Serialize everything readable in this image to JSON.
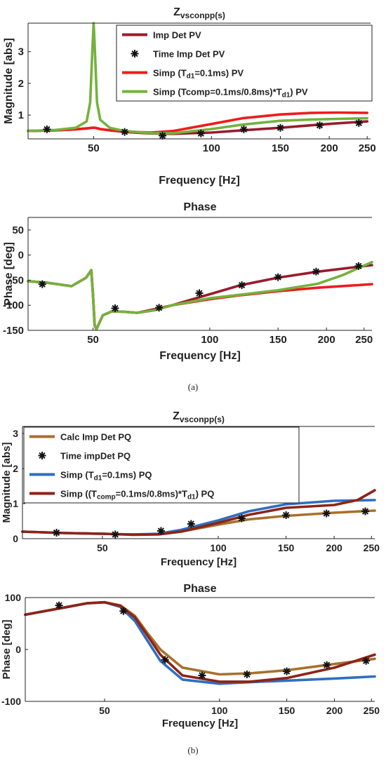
{
  "captions": {
    "a": "(a)",
    "b": "(b)"
  },
  "chart_data": [
    {
      "id": "a-mag",
      "type": "line",
      "title": "Z",
      "title_sub": "vsconpp(s)",
      "xlabel": "Frequency [Hz]",
      "ylabel": "Magnitude [abs]",
      "xscale": "log",
      "xlim": [
        34,
        255
      ],
      "ylim": [
        0.25,
        3.9
      ],
      "xticks": [
        50,
        100,
        150,
        200,
        250
      ],
      "yticks": [
        1,
        2,
        3
      ],
      "legend": [
        {
          "pre": "Imp  Det PV",
          "sub": "",
          "post": "",
          "marker": "line",
          "color": "#9b1b2e"
        },
        {
          "pre": "Time Imp Det PV",
          "sub": "",
          "post": "",
          "marker": "star",
          "color": "#111111"
        },
        {
          "pre": "Simp (T",
          "sub": "d1",
          "post": "=0.1ms) PV",
          "marker": "line",
          "color": "#ee1c1c"
        },
        {
          "pre": "Simp (Tcomp=0.1ms/0.8ms)*T",
          "sub": "d1",
          "post": ") PV",
          "marker": "line",
          "color": "#73b23e"
        }
      ],
      "series": [
        {
          "name": "Imp  Det PV",
          "color": "#9b1b2e",
          "x": [
            34,
            40,
            45,
            48,
            49.5,
            50.5,
            52,
            55,
            60,
            70,
            80,
            100,
            120,
            150,
            180,
            210,
            250
          ],
          "y": [
            0.5,
            0.52,
            0.55,
            0.58,
            0.6,
            0.6,
            0.56,
            0.52,
            0.47,
            0.42,
            0.41,
            0.45,
            0.52,
            0.6,
            0.68,
            0.74,
            0.8
          ]
        },
        {
          "name": "Simp (Td1=0.1ms) PV",
          "color": "#ee1c1c",
          "x": [
            34,
            40,
            45,
            48,
            49.5,
            50.5,
            52,
            55,
            60,
            70,
            80,
            100,
            120,
            150,
            180,
            210,
            250
          ],
          "y": [
            0.5,
            0.52,
            0.55,
            0.58,
            0.6,
            0.6,
            0.56,
            0.52,
            0.48,
            0.45,
            0.5,
            0.72,
            0.9,
            1.02,
            1.07,
            1.08,
            1.07
          ]
        },
        {
          "name": "Simp (Tcomp=0.1ms/0.8ms)*Td1) PV",
          "color": "#73b23e",
          "x": [
            34,
            40,
            45,
            48,
            49,
            49.6,
            50,
            50.4,
            51,
            52,
            55,
            60,
            70,
            80,
            100,
            120,
            150,
            180,
            210,
            250
          ],
          "y": [
            0.5,
            0.53,
            0.6,
            0.8,
            1.4,
            3,
            3.9,
            3,
            1.4,
            0.85,
            0.6,
            0.5,
            0.43,
            0.43,
            0.56,
            0.7,
            0.82,
            0.86,
            0.88,
            0.9
          ]
        }
      ],
      "markers": {
        "color": "#111111",
        "x": [
          38,
          60,
          75,
          94,
          121,
          150,
          189,
          238
        ],
        "y": [
          0.55,
          0.47,
          0.35,
          0.42,
          0.55,
          0.6,
          0.68,
          0.75
        ]
      }
    },
    {
      "id": "a-phase",
      "type": "line",
      "title": "Phase",
      "xlabel": "Frequency [Hz]",
      "ylabel": "Phase [deg]",
      "xscale": "log",
      "xlim": [
        34,
        262
      ],
      "ylim": [
        -150,
        75
      ],
      "xticks": [
        50,
        100,
        150,
        200,
        250
      ],
      "yticks": [
        -150,
        -100,
        -50,
        0,
        50
      ],
      "series": [
        {
          "name": "Imp  Det PV",
          "color": "#9b1b2e",
          "x": [
            34,
            38,
            44,
            48,
            49.5,
            50,
            50.5,
            51,
            53,
            56,
            60,
            65,
            72,
            80,
            100,
            120,
            150,
            190,
            262
          ],
          "y": [
            -52,
            -55,
            -62,
            -45,
            -30,
            -80,
            -140,
            -148,
            -120,
            -112,
            -113,
            -115,
            -108,
            -100,
            -78,
            -60,
            -45,
            -33,
            -20
          ]
        },
        {
          "name": "Simp (Td1=0.1ms) PV",
          "color": "#ee1c1c",
          "x": [
            34,
            38,
            44,
            48,
            49.5,
            50,
            50.5,
            51,
            53,
            56,
            60,
            65,
            72,
            80,
            100,
            120,
            150,
            190,
            262
          ],
          "y": [
            -52,
            -55,
            -62,
            -45,
            -30,
            -80,
            -140,
            -148,
            -120,
            -112,
            -113,
            -115,
            -110,
            -100,
            -88,
            -80,
            -72,
            -65,
            -58
          ]
        },
        {
          "name": "Simp (Tcomp=0.1ms/0.8ms)*Td1) PV",
          "color": "#73b23e",
          "x": [
            34,
            38,
            44,
            48,
            49.5,
            50,
            50.5,
            51,
            53,
            56,
            60,
            65,
            72,
            80,
            100,
            120,
            150,
            190,
            220,
            262
          ],
          "y": [
            -52,
            -55,
            -62,
            -45,
            -30,
            -80,
            -140,
            -148,
            -120,
            -112,
            -113,
            -115,
            -110,
            -100,
            -86,
            -79,
            -70,
            -57,
            -40,
            -14
          ]
        }
      ],
      "markers": {
        "color": "#111111",
        "x": [
          37,
          57,
          74,
          94,
          121,
          150,
          188,
          242
        ],
        "y": [
          -58,
          -106,
          -105,
          -76,
          -60,
          -44,
          -33,
          -22
        ]
      }
    },
    {
      "id": "b-mag",
      "type": "line",
      "title": "Z",
      "title_sub": "vsconpp(s)",
      "xlabel": "Frequency [Hz]",
      "ylabel": "Magnitude [abs]",
      "xscale": "log",
      "xlim": [
        31,
        255
      ],
      "ylim": [
        0,
        3.2
      ],
      "xticks": [
        50,
        100,
        150,
        200,
        250
      ],
      "yticks": [
        0,
        1,
        2,
        3
      ],
      "legend": [
        {
          "pre": "Calc Imp Det PQ",
          "sub": "",
          "post": "",
          "marker": "line",
          "color": "#a8702c"
        },
        {
          "pre": "Time  impDet PQ",
          "sub": "",
          "post": "",
          "marker": "star",
          "color": "#111111"
        },
        {
          "pre": "Simp (T",
          "sub": "d1",
          "post": "=0.1ms) PQ",
          "marker": "line",
          "color": "#2e6fc0"
        },
        {
          "pre": "Simp ((T",
          "sub": "comp",
          "post": "=0.1ms/0.8ms)*T",
          "sub2": "d1",
          "post2": ") PQ",
          "marker": "line",
          "color": "#8e2317"
        }
      ],
      "series": [
        {
          "name": "Calc Imp Det PQ",
          "color": "#a8702c",
          "x": [
            31,
            40,
            50,
            60,
            70,
            80,
            100,
            120,
            150,
            200,
            255
          ],
          "y": [
            0.2,
            0.16,
            0.14,
            0.12,
            0.13,
            0.2,
            0.4,
            0.55,
            0.65,
            0.74,
            0.8
          ]
        },
        {
          "name": "Simp (Td1=0.1ms) PQ",
          "color": "#2e6fc0",
          "x": [
            31,
            40,
            50,
            60,
            70,
            80,
            100,
            120,
            150,
            200,
            255
          ],
          "y": [
            0.2,
            0.16,
            0.14,
            0.12,
            0.14,
            0.25,
            0.52,
            0.78,
            0.98,
            1.08,
            1.1
          ]
        },
        {
          "name": "Simp ((Tcomp=0.1ms/0.8ms)*Td1) PQ",
          "color": "#8e2317",
          "x": [
            31,
            40,
            50,
            60,
            70,
            80,
            100,
            120,
            150,
            200,
            230,
            255
          ],
          "y": [
            0.2,
            0.16,
            0.14,
            0.11,
            0.12,
            0.2,
            0.45,
            0.68,
            0.88,
            0.96,
            1.1,
            1.38
          ]
        }
      ],
      "markers": {
        "color": "#111111",
        "x": [
          38,
          54,
          71,
          85,
          115,
          150,
          191,
          241
        ],
        "y": [
          0.17,
          0.12,
          0.22,
          0.42,
          0.58,
          0.67,
          0.72,
          0.78
        ]
      }
    },
    {
      "id": "b-phase",
      "type": "line",
      "title": "Phase",
      "xlabel": "Frequency [Hz]",
      "ylabel": "Phase [deg]",
      "xscale": "log",
      "xlim": [
        31,
        255
      ],
      "ylim": [
        -100,
        100
      ],
      "xticks": [
        50,
        100,
        150,
        200,
        250
      ],
      "yticks": [
        -100,
        0,
        100
      ],
      "series": [
        {
          "name": "Calc Imp Det PQ",
          "color": "#a8702c",
          "x": [
            31,
            40,
            45,
            50,
            55,
            60,
            65,
            70,
            80,
            100,
            120,
            150,
            200,
            255
          ],
          "y": [
            67,
            82,
            89,
            91,
            85,
            65,
            30,
            0,
            -35,
            -48,
            -46,
            -40,
            -28,
            -18
          ]
        },
        {
          "name": "Simp (Td1=0.1ms) PQ",
          "color": "#2e6fc0",
          "x": [
            31,
            40,
            45,
            50,
            55,
            60,
            65,
            70,
            80,
            100,
            120,
            150,
            200,
            255
          ],
          "y": [
            67,
            82,
            89,
            91,
            82,
            55,
            15,
            -22,
            -58,
            -66,
            -63,
            -60,
            -56,
            -52
          ]
        },
        {
          "name": "Simp ((Tcomp=0.1ms/0.8ms)*Td1) PQ",
          "color": "#8e2317",
          "x": [
            31,
            40,
            45,
            50,
            55,
            60,
            65,
            70,
            80,
            100,
            120,
            150,
            200,
            255
          ],
          "y": [
            67,
            82,
            89,
            91,
            84,
            62,
            25,
            -10,
            -50,
            -62,
            -62,
            -55,
            -35,
            -10
          ]
        }
      ],
      "markers": {
        "color": "#111111",
        "x": [
          38,
          56,
          72,
          90,
          118,
          150,
          191,
          242
        ],
        "y": [
          85,
          74,
          -20,
          -50,
          -48,
          -42,
          -30,
          -22
        ]
      }
    }
  ]
}
